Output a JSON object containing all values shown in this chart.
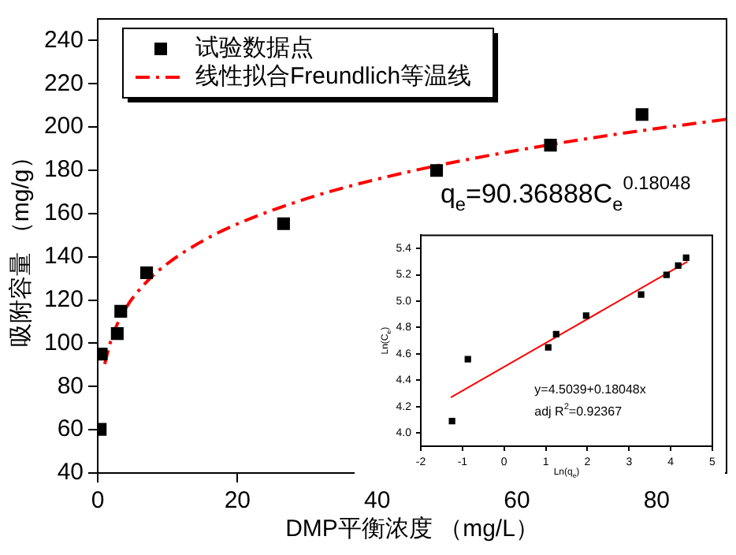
{
  "chart_data": [
    {
      "type": "scatter",
      "xlabel": "DMP平衡浓度 （mg/L）",
      "ylabel": "吸附容量 （mg/g）",
      "xlim": [
        0,
        90
      ],
      "xticks": [
        0,
        20,
        40,
        60,
        80
      ],
      "ylim": [
        40,
        250
      ],
      "yticks": [
        40,
        60,
        80,
        100,
        120,
        140,
        160,
        180,
        200,
        220,
        240
      ],
      "grid": false,
      "legend": "top left",
      "annotations": [
        "q$_{e}$=90.36888C$_{e}$$^{0.18048}$"
      ],
      "series": [
        {
          "name": "试验数据点",
          "color": "#000000",
          "marker": "square",
          "x": [
            0.36,
            0.5,
            2.8,
            3.3,
            7.0,
            26.6,
            48.5,
            64.8,
            77.9
          ],
          "values": [
            60.2,
            95,
            104.5,
            114.8,
            132.6,
            155.3,
            179.9,
            191.6,
            205.8
          ]
        },
        {
          "name": "线性拟合Freundlich等温线",
          "type": "line",
          "color": "#ff0000",
          "marker": "none",
          "line_style": "dashed",
          "x": [
            1,
            2,
            4,
            7,
            10,
            15,
            20,
            30,
            40,
            50,
            60,
            70,
            80,
            90
          ],
          "values": [
            90.4,
            102.4,
            116.1,
            128.4,
            136.9,
            147.3,
            155.2,
            167.0,
            175.9,
            183.1,
            189.2,
            194.6,
            199.3,
            203.6
          ]
        }
      ]
    },
    {
      "type": "scatter",
      "xlabel": "Ln(q$_{e}$)",
      "ylabel": "Ln(C$_{e}$)",
      "xlim": [
        -2,
        5
      ],
      "xticks": [
        -2,
        -1,
        0,
        1,
        2,
        3,
        4,
        5
      ],
      "ylim": [
        3.9,
        5.5
      ],
      "yticks": [
        {
          "value": 4,
          "label": "4.0"
        },
        {
          "value": 4.2,
          "label": "4.2"
        },
        {
          "value": 4.4,
          "label": "4.4"
        },
        {
          "value": 4.6,
          "label": "4.6"
        },
        {
          "value": 4.8,
          "label": "4.8"
        },
        {
          "value": 5,
          "label": "5.0"
        },
        {
          "value": 5.2,
          "label": "5.2"
        },
        {
          "value": 5.4,
          "label": "5.4"
        }
      ],
      "grid": false,
      "annotations": [
        "y=4.5039+0.18048x",
        "adj R$^{2}$=0.92367"
      ],
      "series": [
        {
          "color": "#000000",
          "marker": "square",
          "x": [
            -1.25,
            -0.87,
            1.06,
            1.25,
            1.97,
            3.29,
            3.9,
            4.18,
            4.37
          ],
          "values": [
            4.09,
            4.56,
            4.65,
            4.75,
            4.89,
            5.05,
            5.2,
            5.27,
            5.33
          ]
        },
        {
          "type": "line",
          "color": "#ff0000",
          "marker": "none",
          "line_style": "solid",
          "x": [
            -1.28,
            4.4
          ],
          "values": [
            4.27,
            5.3
          ]
        }
      ]
    }
  ]
}
